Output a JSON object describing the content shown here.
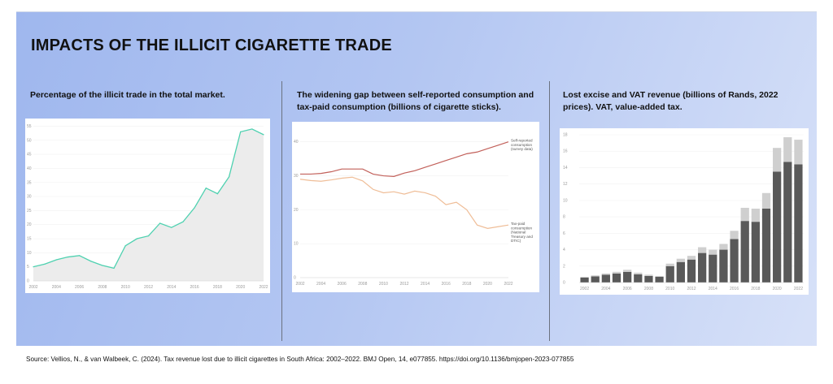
{
  "title": "IMPACTS OF THE ILLICIT CIGARETTE TRADE",
  "source": "Source: Vellios, N., & van Walbeek, C. (2024). Tax revenue lost due to illicit cigarettes in South Africa: 2002–2022. BMJ Open, 14, e077855. https://doi.org/10.1136/bmjopen-2023-077855",
  "colors": {
    "area_line": "#4fd1b0",
    "area_fill": "#ececec",
    "self_reported": "#c2605a",
    "tax_paid": "#efbd97",
    "bar_dark": "#595959",
    "bar_light": "#cfcfcf"
  },
  "chart_data": [
    {
      "type": "area",
      "title": "Percentage of the illicit trade in the total market.",
      "x": [
        2002,
        2003,
        2004,
        2005,
        2006,
        2007,
        2008,
        2009,
        2010,
        2011,
        2012,
        2013,
        2014,
        2015,
        2016,
        2017,
        2018,
        2019,
        2020,
        2021,
        2022
      ],
      "values": [
        5,
        6,
        7.5,
        8.5,
        9,
        7,
        5.5,
        4.5,
        12.5,
        15,
        16,
        20.5,
        19,
        21,
        26,
        33,
        31,
        37,
        53,
        54,
        52
      ],
      "ylim": [
        0,
        56
      ],
      "yticks": [
        0,
        5,
        10,
        15,
        20,
        25,
        30,
        35,
        40,
        45,
        50,
        55
      ],
      "xticks": [
        2002,
        2004,
        2006,
        2008,
        2010,
        2012,
        2014,
        2016,
        2018,
        2020,
        2022
      ],
      "xlabel": "",
      "ylabel": ""
    },
    {
      "type": "line",
      "title": "The widening gap between self-reported consumption and tax-paid consumption (billions of cigarette sticks).",
      "x": [
        2002,
        2003,
        2004,
        2005,
        2006,
        2007,
        2008,
        2009,
        2010,
        2011,
        2012,
        2013,
        2014,
        2015,
        2016,
        2017,
        2018,
        2019,
        2020,
        2021,
        2022
      ],
      "series": [
        {
          "name": "Self-reported consumption (survey data)",
          "label_lines": [
            "Self-reported",
            "consumption",
            "(survey data)"
          ],
          "values": [
            30.5,
            30.5,
            30.7,
            31.2,
            32,
            32,
            32,
            30.5,
            30,
            29.8,
            30.8,
            31.5,
            32.5,
            33.5,
            34.5,
            35.5,
            36.5,
            37,
            38,
            39,
            40
          ]
        },
        {
          "name": "Tax-paid consumption (National Treasury and DTIC)",
          "label_lines": [
            "Tax-paid",
            "consumption",
            "(National",
            "Treasury and",
            "DTIC)"
          ],
          "values": [
            29,
            28.6,
            28.4,
            28.8,
            29.3,
            29.6,
            28.5,
            26,
            25,
            25.3,
            24.6,
            25.5,
            25,
            24,
            21.5,
            22.2,
            20,
            15.5,
            14.5,
            15,
            15.5
          ]
        }
      ],
      "ylim": [
        0,
        44
      ],
      "yticks": [
        0,
        10,
        20,
        30,
        40
      ],
      "xticks": [
        2002,
        2004,
        2006,
        2008,
        2010,
        2012,
        2014,
        2016,
        2018,
        2020,
        2022
      ],
      "xlabel": "",
      "ylabel": ""
    },
    {
      "type": "bar",
      "title": "Lost excise and VAT revenue (billions of Rands, 2022 prices). VAT, value-added tax.",
      "categories": [
        2002,
        2003,
        2004,
        2005,
        2006,
        2007,
        2008,
        2009,
        2010,
        2011,
        2012,
        2013,
        2014,
        2015,
        2016,
        2017,
        2018,
        2019,
        2020,
        2021,
        2022
      ],
      "series": [
        {
          "name": "Excise",
          "values": [
            0.6,
            0.75,
            0.95,
            1.1,
            1.3,
            1.0,
            0.8,
            0.7,
            2.0,
            2.5,
            2.8,
            3.6,
            3.4,
            4.0,
            5.3,
            7.5,
            7.4,
            9.0,
            13.5,
            14.7,
            14.4
          ]
        },
        {
          "name": "VAT",
          "values": [
            0.1,
            0.12,
            0.15,
            0.2,
            0.25,
            0.2,
            0.15,
            0.1,
            0.3,
            0.4,
            0.45,
            0.7,
            0.6,
            0.7,
            1.0,
            1.6,
            1.6,
            1.9,
            2.9,
            3.0,
            3.0
          ]
        }
      ],
      "ylim": [
        0,
        18
      ],
      "yticks": [
        0,
        2,
        4,
        6,
        8,
        10,
        12,
        14,
        16,
        18
      ],
      "xticks": [
        2002,
        2004,
        2006,
        2008,
        2010,
        2012,
        2014,
        2016,
        2018,
        2020,
        2022
      ],
      "xlabel": "",
      "ylabel": ""
    }
  ]
}
